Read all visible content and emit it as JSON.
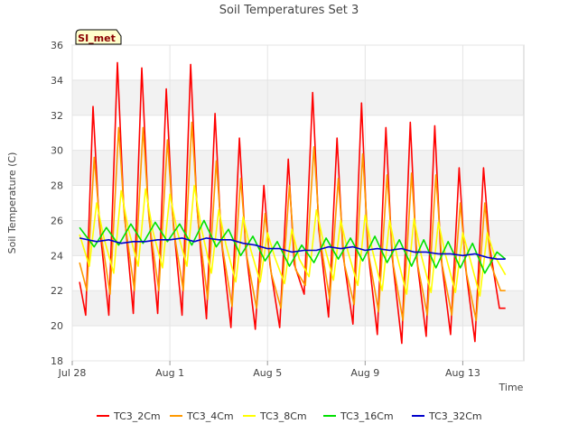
{
  "chart_data": {
    "type": "line",
    "title": "Soil Temperatures Set 3",
    "xlabel": "Time",
    "ylabel": "Soil Temperature (C)",
    "badge": "SI_met",
    "ylim": [
      18,
      36
    ],
    "yticks": [
      18,
      20,
      22,
      24,
      26,
      28,
      30,
      32,
      34,
      36
    ],
    "xlim_days": [
      0,
      18.5
    ],
    "xticks": [
      {
        "day": 0,
        "label": "Jul 28"
      },
      {
        "day": 4,
        "label": "Aug 1"
      },
      {
        "day": 8,
        "label": "Aug 5"
      },
      {
        "day": 12,
        "label": "Aug 9"
      },
      {
        "day": 16,
        "label": "Aug 13"
      }
    ],
    "grid": true,
    "legend_position": "bottom",
    "colors": {
      "TC3_2Cm": "#ff0000",
      "TC3_4Cm": "#ff9900",
      "TC3_8Cm": "#ffff00",
      "TC3_16Cm": "#00e000",
      "TC3_32Cm": "#0000cc"
    },
    "series": [
      {
        "name": "TC3_2Cm",
        "days": [
          0.3,
          0.55,
          0.85,
          1.1,
          1.5,
          1.85,
          2.1,
          2.5,
          2.85,
          3.1,
          3.5,
          3.85,
          4.1,
          4.5,
          4.85,
          5.1,
          5.5,
          5.85,
          6.1,
          6.5,
          6.85,
          7.1,
          7.5,
          7.85,
          8.1,
          8.5,
          8.85,
          9.1,
          9.5,
          9.85,
          10.1,
          10.5,
          10.85,
          11.1,
          11.5,
          11.85,
          12.1,
          12.5,
          12.85,
          13.1,
          13.5,
          13.85,
          14.1,
          14.5,
          14.85,
          15.1,
          15.5,
          15.85,
          16.1,
          16.5,
          16.85,
          17.1,
          17.5,
          17.75
        ],
        "values": [
          22.5,
          20.6,
          32.5,
          26.0,
          20.6,
          35.0,
          27.0,
          20.7,
          34.7,
          27.0,
          20.7,
          33.5,
          26.5,
          20.6,
          34.9,
          27.0,
          20.4,
          32.1,
          25.0,
          19.9,
          30.7,
          24.5,
          19.8,
          28.0,
          23.5,
          19.9,
          29.5,
          23.5,
          21.8,
          33.3,
          25.5,
          20.5,
          30.7,
          24.0,
          20.1,
          32.7,
          24.5,
          19.5,
          31.3,
          24.0,
          19.0,
          31.6,
          24.0,
          19.4,
          31.4,
          24.0,
          19.5,
          29.0,
          23.5,
          19.1,
          29.0,
          24.5,
          21.0,
          21.0
        ]
      },
      {
        "name": "TC3_4Cm",
        "days": [
          0.3,
          0.6,
          0.9,
          1.15,
          1.55,
          1.9,
          2.15,
          2.55,
          2.9,
          3.15,
          3.55,
          3.9,
          4.15,
          4.55,
          4.9,
          5.15,
          5.55,
          5.9,
          6.15,
          6.55,
          6.9,
          7.15,
          7.55,
          7.9,
          8.15,
          8.55,
          8.9,
          9.15,
          9.55,
          9.9,
          10.15,
          10.55,
          10.9,
          11.15,
          11.55,
          11.9,
          12.15,
          12.55,
          12.9,
          13.15,
          13.55,
          13.9,
          14.15,
          14.55,
          14.9,
          15.15,
          15.55,
          15.9,
          16.15,
          16.55,
          16.9,
          17.15,
          17.55,
          17.75
        ],
        "values": [
          23.6,
          22.0,
          29.6,
          25.5,
          21.8,
          31.3,
          26.0,
          22.0,
          31.3,
          26.0,
          22.0,
          30.6,
          25.5,
          22.0,
          31.6,
          26.0,
          21.5,
          29.4,
          24.5,
          21.1,
          28.4,
          24.0,
          21.0,
          26.4,
          23.0,
          21.0,
          28.0,
          23.2,
          22.3,
          30.2,
          25.0,
          21.5,
          28.4,
          23.5,
          21.2,
          29.8,
          24.0,
          20.8,
          28.6,
          23.5,
          20.3,
          28.7,
          23.5,
          20.6,
          28.6,
          23.5,
          20.6,
          27.0,
          23.0,
          20.3,
          27.0,
          23.5,
          22.0,
          22.0
        ]
      },
      {
        "name": "TC3_8Cm",
        "days": [
          0.3,
          0.7,
          1.0,
          1.3,
          1.7,
          2.0,
          2.3,
          2.7,
          3.0,
          3.3,
          3.7,
          4.0,
          4.3,
          4.7,
          5.0,
          5.3,
          5.7,
          6.0,
          6.3,
          6.7,
          7.0,
          7.3,
          7.7,
          8.0,
          8.3,
          8.7,
          9.0,
          9.3,
          9.7,
          10.0,
          10.3,
          10.7,
          11.0,
          11.3,
          11.7,
          12.0,
          12.3,
          12.7,
          13.0,
          13.3,
          13.7,
          14.0,
          14.3,
          14.7,
          15.0,
          15.3,
          15.7,
          16.0,
          16.3,
          16.7,
          17.0,
          17.3,
          17.75
        ],
        "values": [
          25.2,
          23.4,
          27.0,
          25.0,
          23.0,
          27.7,
          25.5,
          23.4,
          27.8,
          25.4,
          23.3,
          27.5,
          25.4,
          23.4,
          28.0,
          25.5,
          23.0,
          26.6,
          24.6,
          22.5,
          26.2,
          24.4,
          22.5,
          25.3,
          23.9,
          22.4,
          25.5,
          23.8,
          22.8,
          26.6,
          24.7,
          22.6,
          26.0,
          24.2,
          22.3,
          26.3,
          24.3,
          22.0,
          26.0,
          24.0,
          21.8,
          26.1,
          24.0,
          21.9,
          25.9,
          24.0,
          21.9,
          25.3,
          23.8,
          21.7,
          25.3,
          24.0,
          22.9
        ]
      },
      {
        "name": "TC3_16Cm",
        "days": [
          0.3,
          0.9,
          1.4,
          1.9,
          2.4,
          2.9,
          3.4,
          3.9,
          4.4,
          4.9,
          5.4,
          5.9,
          6.4,
          6.9,
          7.4,
          7.9,
          8.4,
          8.9,
          9.4,
          9.9,
          10.4,
          10.9,
          11.4,
          11.9,
          12.4,
          12.9,
          13.4,
          13.9,
          14.4,
          14.9,
          15.4,
          15.9,
          16.4,
          16.9,
          17.4,
          17.75
        ],
        "values": [
          25.6,
          24.5,
          25.6,
          24.6,
          25.8,
          24.7,
          25.9,
          24.8,
          25.8,
          24.6,
          26.0,
          24.5,
          25.5,
          24.0,
          25.1,
          23.7,
          24.8,
          23.4,
          24.6,
          23.6,
          25.0,
          23.8,
          25.0,
          23.7,
          25.1,
          23.6,
          24.9,
          23.4,
          24.9,
          23.3,
          24.8,
          23.3,
          24.7,
          23.0,
          24.2,
          23.8
        ]
      },
      {
        "name": "TC3_32Cm",
        "days": [
          0.3,
          1.0,
          1.5,
          2.0,
          2.5,
          3.0,
          3.5,
          4.0,
          4.5,
          5.0,
          5.5,
          6.0,
          6.5,
          7.0,
          7.5,
          8.0,
          8.5,
          9.0,
          9.5,
          10.0,
          10.5,
          11.0,
          11.5,
          12.0,
          12.5,
          13.0,
          13.5,
          14.0,
          14.5,
          15.0,
          15.5,
          16.0,
          16.5,
          17.0,
          17.4,
          17.75
        ],
        "values": [
          25.0,
          24.8,
          24.9,
          24.7,
          24.8,
          24.8,
          24.9,
          24.9,
          25.0,
          24.8,
          25.0,
          24.9,
          24.9,
          24.7,
          24.6,
          24.4,
          24.4,
          24.2,
          24.3,
          24.3,
          24.5,
          24.4,
          24.5,
          24.3,
          24.4,
          24.3,
          24.4,
          24.2,
          24.2,
          24.1,
          24.1,
          24.0,
          24.1,
          23.9,
          23.8,
          23.8
        ]
      }
    ]
  }
}
